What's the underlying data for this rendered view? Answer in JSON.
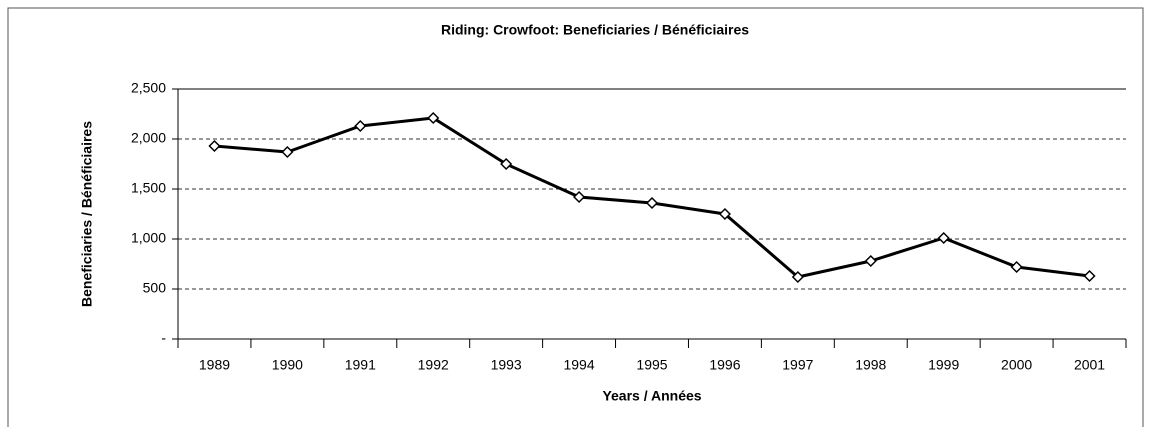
{
  "chart_data": {
    "type": "line",
    "title": "Riding:  Crowfoot:  Beneficiaries / Bénéficiaires",
    "xlabel": "Years / Années",
    "ylabel": "Beneficiaries / Bénéficiaires",
    "categories": [
      "1989",
      "1990",
      "1991",
      "1992",
      "1993",
      "1994",
      "1995",
      "1996",
      "1997",
      "1998",
      "1999",
      "2000",
      "2001"
    ],
    "series": [
      {
        "color": "#000000",
        "values": [
          1930,
          1870,
          2130,
          2210,
          1750,
          1420,
          1360,
          1250,
          620,
          780,
          1010,
          720,
          630
        ]
      }
    ],
    "ylim": [
      0,
      2500
    ],
    "yticks": [
      {
        "value": 0,
        "label": "-"
      },
      500,
      {
        "value": 1000,
        "label": "1,000"
      },
      {
        "value": 1500,
        "label": "1,500"
      },
      {
        "value": 2000,
        "label": "2,000"
      },
      {
        "value": 2500,
        "label": "2,500"
      }
    ],
    "grid": true
  }
}
